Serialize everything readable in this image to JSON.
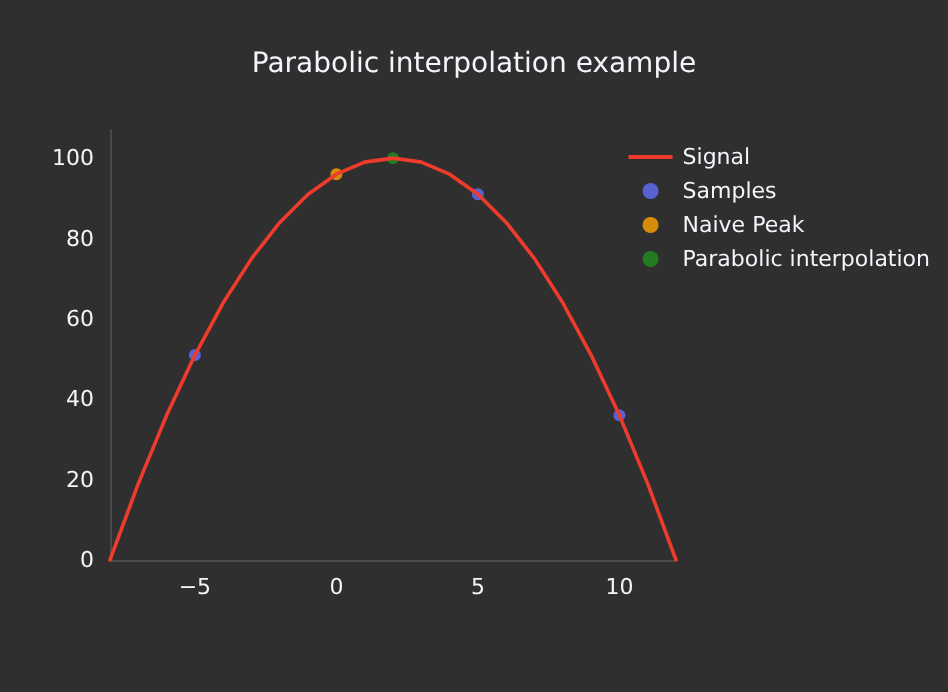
{
  "chart_data": {
    "type": "line",
    "title": "Parabolic interpolation example",
    "xlim": [
      -8,
      12
    ],
    "xticks": [
      {
        "value": -5,
        "label": "−5"
      },
      0,
      5,
      10
    ],
    "ylim": [
      0,
      107
    ],
    "yticks": [
      0,
      20,
      40,
      60,
      80,
      100
    ],
    "grid": false,
    "legend": "top right",
    "series": [
      {
        "name": "Signal",
        "type": "line",
        "color": "#ef3b2c",
        "marker": "none",
        "x": [
          -8,
          -7,
          -6,
          -5,
          -4,
          -3,
          -2,
          -1,
          0,
          1,
          2,
          3,
          4,
          5,
          6,
          7,
          8,
          9,
          10,
          11,
          12
        ],
        "values": [
          0,
          19,
          36,
          51,
          64,
          75,
          84,
          91,
          96,
          99,
          100,
          99,
          96,
          91,
          84,
          75,
          64,
          51,
          36,
          19,
          0
        ]
      },
      {
        "name": "Samples",
        "type": "scatter",
        "color": "#636efa",
        "marker": "circle",
        "x": [
          -5,
          5,
          10
        ],
        "values": [
          51,
          91,
          36
        ]
      },
      {
        "name": "Naive Peak",
        "type": "scatter",
        "color": "#ffa500",
        "marker": "circle",
        "x": [
          0
        ],
        "values": [
          96
        ]
      },
      {
        "name": "Parabolic interpolation",
        "type": "scatter",
        "color": "#1f8f1f",
        "marker": "circle",
        "x": [
          2
        ],
        "values": [
          100
        ]
      }
    ]
  }
}
